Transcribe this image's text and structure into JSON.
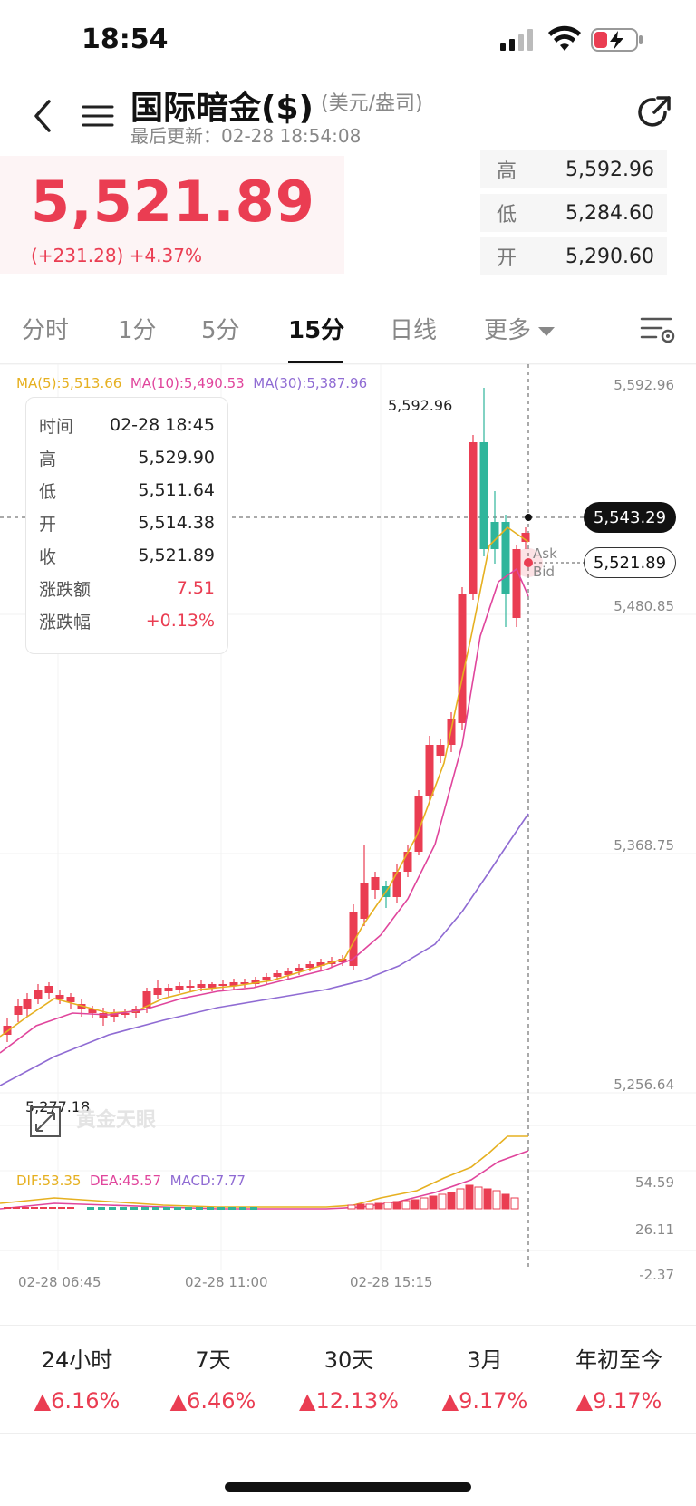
{
  "status_bar": {
    "time": "18:54"
  },
  "header": {
    "title": "国际暗金($)",
    "unit": "(美元/盎司)",
    "updated": "最后更新：02-28 18:54:08"
  },
  "quote": {
    "price": "5,521.89",
    "change": "(+231.28)  +4.37%",
    "high_label": "高",
    "high": "5,592.96",
    "low_label": "低",
    "low": "5,284.60",
    "open_label": "开",
    "open": "5,290.60"
  },
  "tabs": [
    "分时",
    "1分",
    "5分",
    "15分",
    "日线",
    "更多"
  ],
  "active_tab": "15分",
  "chart": {
    "ma5": "MA(5):5,513.66",
    "ma10": "MA(10):5,490.53",
    "ma30": "MA(30):5,387.96",
    "y_labels": [
      "5,592.96",
      "5,480.85",
      "5,368.75",
      "5,256.64"
    ],
    "hi_marker": "5,592.96",
    "lo_marker": "5,277.18",
    "crosshair_price": "5,543.29",
    "bid_price": "5,521.89",
    "ask": "Ask",
    "bid": "Bid",
    "tooltip": {
      "time_k": "时间",
      "time_v": "02-28 18:45",
      "high_k": "高",
      "high_v": "5,529.90",
      "low_k": "低",
      "low_v": "5,511.64",
      "open_k": "开",
      "open_v": "5,514.38",
      "close_k": "收",
      "close_v": "5,521.89",
      "chg_k": "涨跌额",
      "chg_v": "7.51",
      "pct_k": "涨跌幅",
      "pct_v": "+0.13%"
    },
    "macd_dif": "DIF:53.35",
    "macd_dea": "DEA:45.57",
    "macd_val": "MACD:7.77",
    "macd_y": [
      "54.59",
      "26.11",
      "-2.37"
    ],
    "x_labels": [
      "02-28 06:45",
      "02-28 11:00",
      "02-28 15:15"
    ],
    "watermark": "黄金天眼"
  },
  "performance": [
    {
      "label": "24小时",
      "value": "6.16%"
    },
    {
      "label": "7天",
      "value": "6.46%"
    },
    {
      "label": "30天",
      "value": "12.13%"
    },
    {
      "label": "3月",
      "value": "9.17%"
    },
    {
      "label": "年初至今",
      "value": "9.17%"
    }
  ],
  "colors": {
    "up": "#ea3d52",
    "down": "#2fb59b",
    "ma5": "#e6b020",
    "ma10": "#e0459c",
    "ma30": "#8f6bd3"
  }
}
